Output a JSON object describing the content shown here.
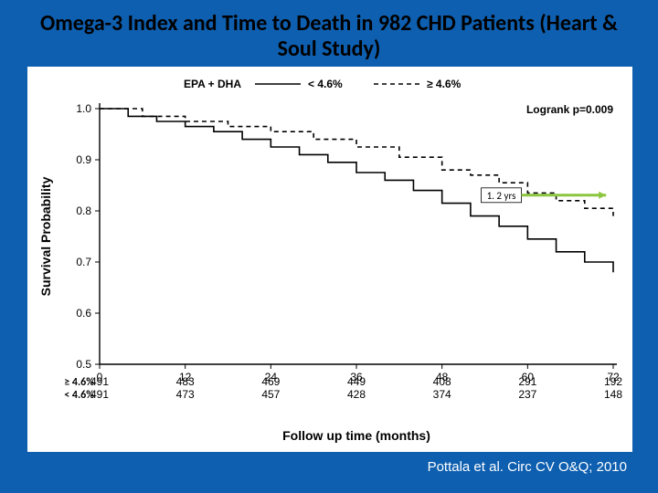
{
  "title": "Omega-3 Index and Time to Death in 982 CHD Patients (Heart & Soul Study)",
  "title_fontsize": 24,
  "citation": "Pottala et al. Circ CV O&Q; 2010",
  "chart": {
    "type": "line",
    "background_color": "#ffffff",
    "axis_color": "#000000",
    "xlabel": "Follow up time (months)",
    "ylabel": "Survival Probability",
    "label_fontsize": 14,
    "xlim": [
      0,
      72
    ],
    "xtick_step": 12,
    "ylim": [
      0.5,
      1.0
    ],
    "ytick_step": 0.1,
    "xticks": [
      "0",
      "12",
      "24",
      "36",
      "48",
      "60",
      "72"
    ],
    "yticks": [
      "0.5",
      "0.6",
      "0.7",
      "0.8",
      "0.9",
      "1.0"
    ],
    "legend_header": "EPA + DHA",
    "stat_text": "Logrank p=0.009",
    "series": [
      {
        "id": "high",
        "label": "≥ 4.6%",
        "dash": "5,4",
        "color": "#000000",
        "width": 1.6,
        "points": [
          [
            0,
            1.0
          ],
          [
            6,
            0.985
          ],
          [
            12,
            0.975
          ],
          [
            18,
            0.965
          ],
          [
            24,
            0.955
          ],
          [
            30,
            0.94
          ],
          [
            36,
            0.925
          ],
          [
            42,
            0.905
          ],
          [
            48,
            0.88
          ],
          [
            52,
            0.87
          ],
          [
            56,
            0.855
          ],
          [
            60,
            0.835
          ],
          [
            64,
            0.82
          ],
          [
            68,
            0.805
          ],
          [
            72,
            0.79
          ]
        ]
      },
      {
        "id": "low",
        "label": "< 4.6%",
        "dash": "",
        "color": "#000000",
        "width": 1.6,
        "points": [
          [
            0,
            1.0
          ],
          [
            4,
            0.985
          ],
          [
            8,
            0.975
          ],
          [
            12,
            0.965
          ],
          [
            16,
            0.955
          ],
          [
            20,
            0.94
          ],
          [
            24,
            0.925
          ],
          [
            28,
            0.91
          ],
          [
            32,
            0.895
          ],
          [
            36,
            0.875
          ],
          [
            40,
            0.86
          ],
          [
            44,
            0.84
          ],
          [
            48,
            0.815
          ],
          [
            52,
            0.79
          ],
          [
            56,
            0.77
          ],
          [
            60,
            0.745
          ],
          [
            64,
            0.72
          ],
          [
            68,
            0.7
          ],
          [
            72,
            0.68
          ]
        ]
      }
    ],
    "at_risk": {
      "rows": [
        {
          "label": "≥ 4.6%",
          "counts": [
            491,
            483,
            469,
            449,
            408,
            291,
            192
          ]
        },
        {
          "label": "< 4.6%",
          "counts": [
            491,
            473,
            457,
            428,
            374,
            237,
            148
          ]
        }
      ]
    },
    "annotation": {
      "text": "1. 2 yrs",
      "arrow_color": "#8cc63f"
    }
  }
}
